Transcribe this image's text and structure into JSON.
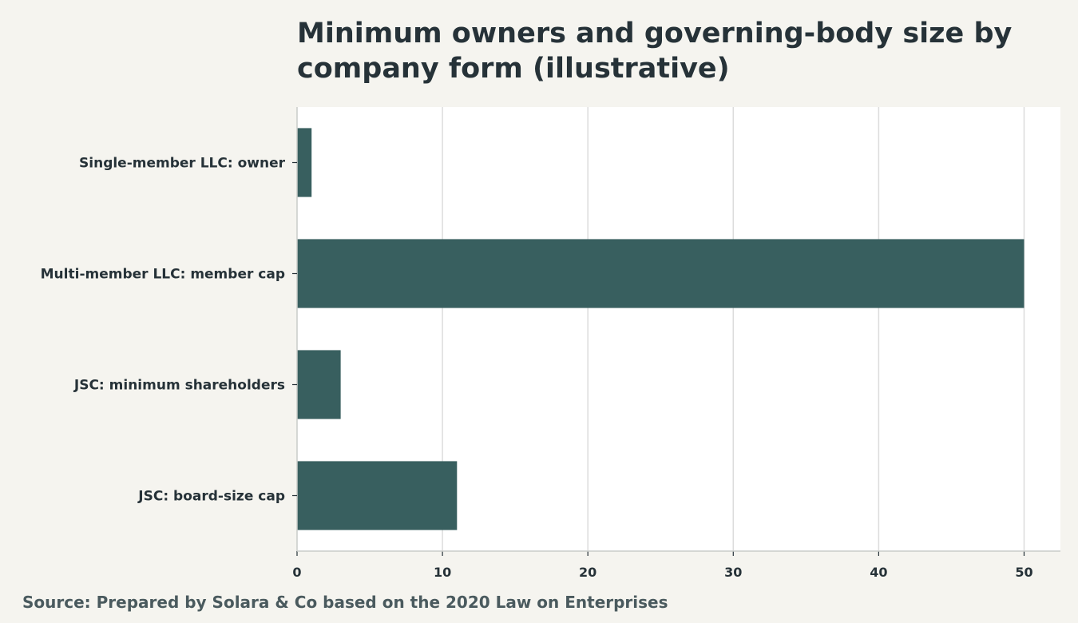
{
  "chart_data": {
    "type": "bar",
    "orientation": "horizontal",
    "title": "Minimum owners and governing-body size by company form (illustrative)",
    "source": "Source: Prepared by Solara & Co based on the 2020 Law on Enterprises",
    "categories": [
      "Single-member LLC: owner",
      "Multi-member LLC: member cap",
      "JSC: minimum shareholders",
      "JSC: board-size cap"
    ],
    "values": [
      1,
      50,
      3,
      11
    ],
    "xlim": [
      0,
      52.5
    ],
    "xticks": [
      0,
      10,
      20,
      30,
      40,
      50
    ],
    "xlabel": "",
    "ylabel": "",
    "grid": "vertical",
    "colors": {
      "bar": "#385f5f",
      "plot_background": "#ffffff",
      "page_background": "#f5f4ef",
      "grid": "#dcdcdc",
      "axis": "#c9ccc9",
      "text": "#263238"
    }
  }
}
